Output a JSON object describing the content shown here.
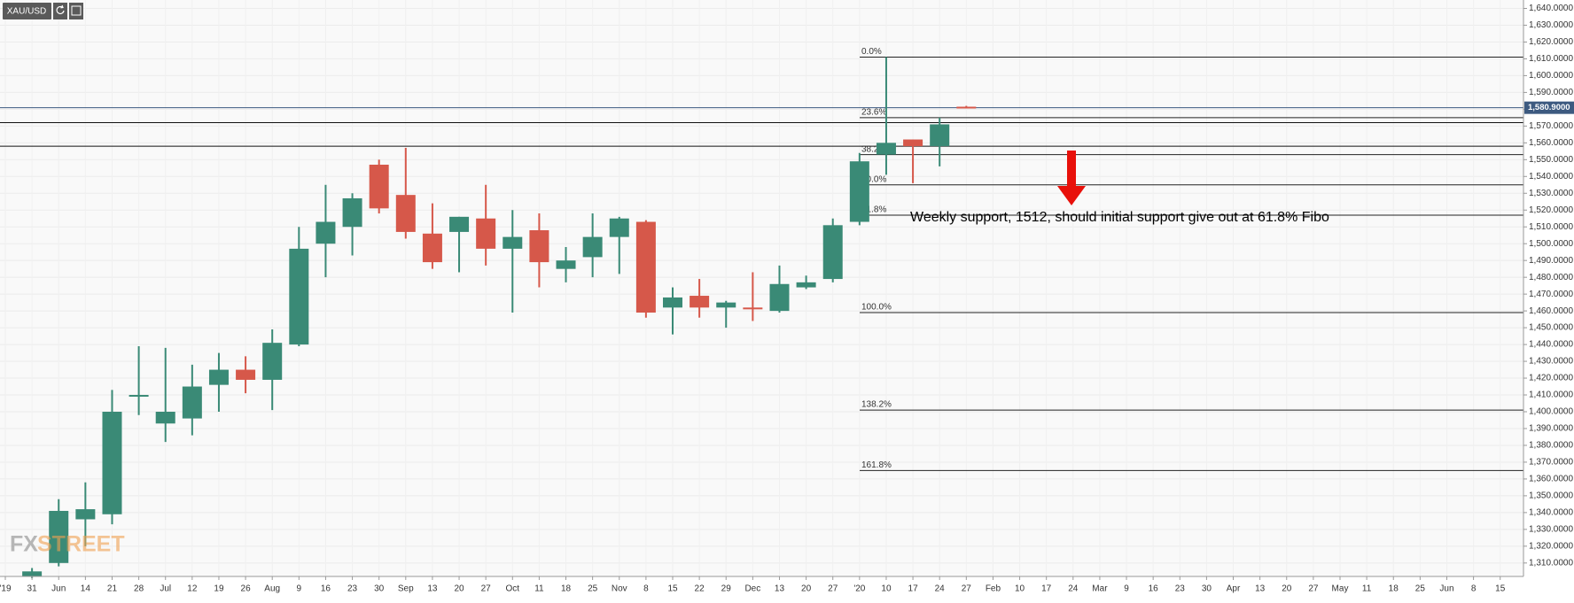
{
  "toolbar": {
    "symbol": "XAU/USD"
  },
  "watermark": {
    "fx": "FX",
    "street": "STREET"
  },
  "chart_data": {
    "type": "candlestick",
    "categories": [
      "'19",
      "31",
      "Jun",
      "14",
      "21",
      "28",
      "Jul",
      "12",
      "19",
      "26",
      "Aug",
      "9",
      "16",
      "23",
      "30",
      "Sep",
      "13",
      "20",
      "27",
      "Oct",
      "11",
      "18",
      "25",
      "Nov",
      "8",
      "15",
      "22",
      "29",
      "Dec",
      "13",
      "20",
      "27",
      "'20",
      "10",
      "17",
      "24",
      "27",
      "Feb",
      "10",
      "17",
      "24",
      "Mar",
      "9",
      "16",
      "23",
      "30",
      "Apr",
      "13",
      "20",
      "27",
      "May",
      "11",
      "18",
      "25",
      "Jun",
      "8",
      "15"
    ],
    "open": [
      null,
      1302,
      1310,
      1336,
      1339,
      1409,
      1393,
      1396,
      1416,
      1425,
      1419,
      1440,
      1500,
      1510,
      1547,
      1529,
      1506,
      1507,
      1515,
      1497,
      1508,
      1485,
      1492,
      1504,
      1513,
      1462,
      1469,
      1462,
      1462,
      1460,
      1474,
      1479,
      1513,
      1553,
      1562,
      1558,
      1581.5,
      null,
      null,
      null,
      null,
      null,
      null,
      null,
      null,
      null,
      null,
      null,
      null,
      null,
      null,
      null,
      null,
      null,
      null,
      null,
      null
    ],
    "high": [
      null,
      1307,
      1348,
      1358,
      1413,
      1439,
      1438,
      1428,
      1435,
      1433,
      1449,
      1510,
      1535,
      1530,
      1550,
      1557,
      1524,
      1516,
      1535,
      1520,
      1518,
      1498,
      1518,
      1516,
      1514,
      1474,
      1479,
      1466,
      1483,
      1487,
      1481,
      1515,
      1554,
      1611,
      1562,
      1575,
      1582,
      null,
      null,
      null,
      null,
      null,
      null,
      null,
      null,
      null,
      null,
      null,
      null,
      null,
      null,
      null,
      null,
      null,
      null,
      null,
      null
    ],
    "low": [
      null,
      1301,
      1308,
      1320,
      1333,
      1398,
      1382,
      1386,
      1400,
      1411,
      1401,
      1439,
      1480,
      1493,
      1518,
      1503,
      1485,
      1483,
      1487,
      1459,
      1474,
      1477,
      1480,
      1482,
      1456,
      1446,
      1456,
      1450,
      1454,
      1459,
      1473,
      1477,
      1511,
      1541,
      1536,
      1546,
      1580.9,
      null,
      null,
      null,
      null,
      null,
      null,
      null,
      null,
      null,
      null,
      null,
      null,
      null,
      null,
      null,
      null,
      null,
      null,
      null,
      null
    ],
    "close": [
      null,
      1305,
      1341,
      1342,
      1400,
      1410,
      1400,
      1415,
      1425,
      1419,
      1441,
      1497,
      1513,
      1527,
      1521,
      1507,
      1489,
      1516,
      1497,
      1504,
      1489,
      1490,
      1504,
      1515,
      1459,
      1468,
      1462,
      1465,
      1461,
      1476,
      1477,
      1511,
      1549,
      1560,
      1558,
      1571,
      1580.9,
      null,
      null,
      null,
      null,
      null,
      null,
      null,
      null,
      null,
      null,
      null,
      null,
      null,
      null,
      null,
      null,
      null,
      null,
      null,
      null
    ],
    "up_color": "#3a8a76",
    "down_color": "#d6584a",
    "ylim": [
      1302,
      1645
    ],
    "yticks": [
      {
        "value": 1310,
        "label": "1,310.0000"
      },
      {
        "value": 1320,
        "label": "1,320.0000"
      },
      {
        "value": 1330,
        "label": "1,330.0000"
      },
      {
        "value": 1340,
        "label": "1,340.0000"
      },
      {
        "value": 1350,
        "label": "1,350.0000"
      },
      {
        "value": 1360,
        "label": "1,360.0000"
      },
      {
        "value": 1370,
        "label": "1,370.0000"
      },
      {
        "value": 1380,
        "label": "1,380.0000"
      },
      {
        "value": 1390,
        "label": "1,390.0000"
      },
      {
        "value": 1400,
        "label": "1,400.0000"
      },
      {
        "value": 1410,
        "label": "1,410.0000"
      },
      {
        "value": 1420,
        "label": "1,420.0000"
      },
      {
        "value": 1430,
        "label": "1,430.0000"
      },
      {
        "value": 1440,
        "label": "1,440.0000"
      },
      {
        "value": 1450,
        "label": "1,450.0000"
      },
      {
        "value": 1460,
        "label": "1,460.0000"
      },
      {
        "value": 1470,
        "label": "1,470.0000"
      },
      {
        "value": 1480,
        "label": "1,480.0000"
      },
      {
        "value": 1490,
        "label": "1,490.0000"
      },
      {
        "value": 1500,
        "label": "1,500.0000"
      },
      {
        "value": 1510,
        "label": "1,510.0000"
      },
      {
        "value": 1520,
        "label": "1,520.0000"
      },
      {
        "value": 1530,
        "label": "1,530.0000"
      },
      {
        "value": 1540,
        "label": "1,540.0000"
      },
      {
        "value": 1550,
        "label": "1,550.0000"
      },
      {
        "value": 1560,
        "label": "1,560.0000"
      },
      {
        "value": 1570,
        "label": "1,570.0000"
      },
      {
        "value": 1580,
        "label": "1,580.0000"
      },
      {
        "value": 1590,
        "label": "1,590.0000"
      },
      {
        "value": 1600,
        "label": "1,600.0000"
      },
      {
        "value": 1610,
        "label": "1,610.0000"
      },
      {
        "value": 1620,
        "label": "1,620.0000"
      },
      {
        "value": 1630,
        "label": "1,630.0000"
      },
      {
        "value": 1640,
        "label": "1,640.0000"
      }
    ],
    "grid": true,
    "horizontal_lines": [
      1572,
      1558
    ],
    "last_price": {
      "value": 1580.9,
      "label": "1,580.9000",
      "color": "#3d5a80"
    },
    "fibonacci": {
      "levels": [
        "0.0%",
        "23.6%",
        "38.2%",
        "50.0%",
        "61.8%",
        "100.0%",
        "138.2%",
        "161.8%"
      ],
      "prices": [
        1611,
        1575,
        1553,
        1535,
        1517,
        1459,
        1401,
        1365
      ]
    },
    "annotation": "Weekly support, 1512, should initial support give out at 61.8% Fibo"
  }
}
